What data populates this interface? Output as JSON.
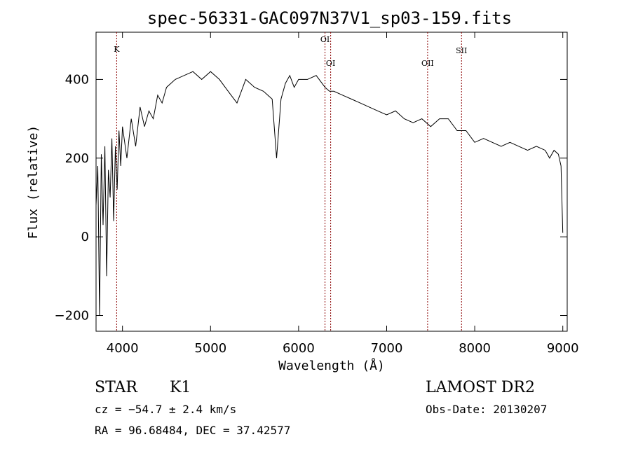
{
  "chart_data": {
    "type": "line",
    "title": "spec-56331-GAC097N37V1_sp03-159.fits",
    "xlabel": "Wavelength (Å)",
    "ylabel": "Flux (relative)",
    "xlim": [
      3700,
      9050
    ],
    "ylim": [
      -240,
      520
    ],
    "xticks": [
      4000,
      5000,
      6000,
      7000,
      8000,
      9000
    ],
    "yticks": [
      -200,
      0,
      200,
      400
    ],
    "grid": false,
    "series": [
      {
        "color": "#000000",
        "x": [
          3700,
          3720,
          3740,
          3760,
          3780,
          3800,
          3820,
          3840,
          3860,
          3880,
          3900,
          3920,
          3940,
          3960,
          3980,
          4000,
          4050,
          4100,
          4150,
          4200,
          4250,
          4300,
          4350,
          4400,
          4450,
          4500,
          4600,
          4700,
          4800,
          4900,
          5000,
          5100,
          5200,
          5300,
          5400,
          5500,
          5600,
          5700,
          5750,
          5800,
          5850,
          5900,
          5950,
          6000,
          6100,
          6200,
          6300,
          6350,
          6400,
          6500,
          6600,
          6700,
          6800,
          6900,
          7000,
          7100,
          7200,
          7300,
          7400,
          7500,
          7600,
          7700,
          7800,
          7900,
          8000,
          8100,
          8200,
          8300,
          8400,
          8500,
          8600,
          8700,
          8800,
          8850,
          8900,
          8950,
          8980,
          9000
        ],
        "y": [
          80,
          180,
          -200,
          210,
          30,
          230,
          -100,
          170,
          100,
          250,
          40,
          230,
          120,
          270,
          180,
          280,
          200,
          300,
          230,
          330,
          280,
          320,
          300,
          360,
          340,
          380,
          400,
          410,
          420,
          400,
          420,
          400,
          370,
          340,
          400,
          380,
          370,
          350,
          200,
          350,
          390,
          410,
          380,
          400,
          400,
          410,
          380,
          370,
          370,
          360,
          350,
          340,
          330,
          320,
          310,
          320,
          300,
          290,
          300,
          280,
          300,
          300,
          270,
          270,
          240,
          250,
          240,
          230,
          240,
          230,
          220,
          230,
          220,
          200,
          220,
          210,
          180,
          10
        ]
      }
    ],
    "reference_lines": [
      {
        "label": "K",
        "x": 3934
      },
      {
        "label": "OI",
        "x": 6300
      },
      {
        "label": "OI",
        "x": 6364
      },
      {
        "label": "OII",
        "x": 7465
      },
      {
        "label": "SII",
        "x": 7850
      }
    ],
    "reference_line_color": "#8b0000"
  },
  "info": {
    "object_class": "STAR",
    "subclass": "K1",
    "survey": "LAMOST DR2",
    "redshift": "cz = −54.7 ± 2.4 km/s",
    "obs_date": "Obs-Date: 20130207",
    "coords": "RA =  96.68484, DEC =  37.42577"
  }
}
